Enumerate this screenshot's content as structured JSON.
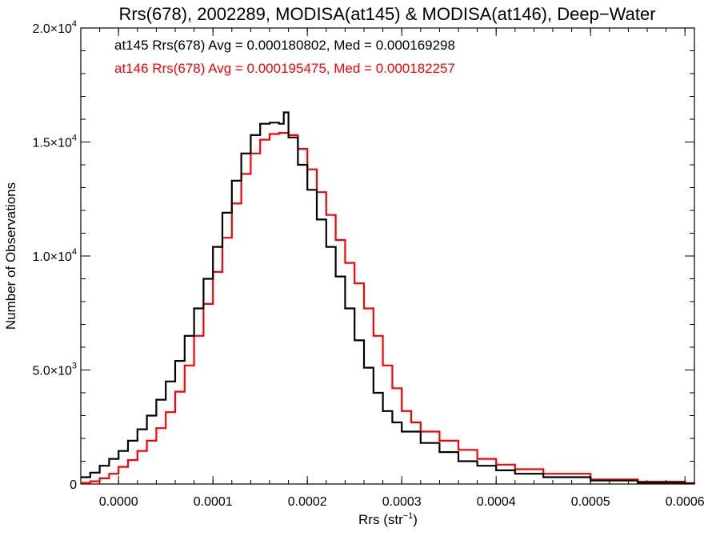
{
  "chart_data": {
    "type": "histogram",
    "title": "Rrs(678), 2002289, MODISA(at145) & MODISA(at146), Deep−Water",
    "xlabel_base": "Rrs (str",
    "xlabel_sup": "−1",
    "xlabel_end": ")",
    "ylabel": "Number of Observations",
    "xlim": [
      -4e-05,
      0.00061
    ],
    "ylim": [
      0,
      20000
    ],
    "grid": false,
    "x_ticks": [
      {
        "value": 0.0,
        "label": "0.0000"
      },
      {
        "value": 0.0001,
        "label": "0.0001"
      },
      {
        "value": 0.0002,
        "label": "0.0002"
      },
      {
        "value": 0.0003,
        "label": "0.0003"
      },
      {
        "value": 0.0004,
        "label": "0.0004"
      },
      {
        "value": 0.0005,
        "label": "0.0005"
      },
      {
        "value": 0.0006,
        "label": "0.0006"
      }
    ],
    "y_ticks": [
      {
        "value": 0,
        "base": "0",
        "exp": ""
      },
      {
        "value": 5000,
        "base": "5.0×10",
        "exp": "3"
      },
      {
        "value": 10000,
        "base": "1.0×10",
        "exp": "4"
      },
      {
        "value": 15000,
        "base": "1.5×10",
        "exp": "4"
      },
      {
        "value": 20000,
        "base": "2.0×10",
        "exp": "4"
      }
    ],
    "annotations": [
      {
        "text": "at145 Rrs(678) Avg = 0.000180802, Med = 0.000169298",
        "color": "#000000"
      },
      {
        "text": "at146 Rrs(678) Avg = 0.000195475, Med = 0.000182257",
        "color": "#ff0000"
      }
    ],
    "series": [
      {
        "color": "#000000",
        "x": [
          -4e-05,
          -3e-05,
          -2e-05,
          -1e-05,
          0.0,
          1e-05,
          2e-05,
          3e-05,
          4e-05,
          5e-05,
          6e-05,
          7e-05,
          8e-05,
          9e-05,
          0.0001,
          0.00011,
          0.00012,
          0.00013,
          0.00014,
          0.00015,
          0.00016,
          0.00017,
          0.000175,
          0.00018,
          0.00019,
          0.0002,
          0.00021,
          0.00022,
          0.00023,
          0.00024,
          0.00025,
          0.00026,
          0.00027,
          0.00028,
          0.00029,
          0.0003,
          0.00032,
          0.00034,
          0.00036,
          0.00038,
          0.0004,
          0.00042,
          0.00045,
          0.0005,
          0.00055,
          0.0006,
          0.00061
        ],
        "y": [
          300,
          500,
          800,
          1100,
          1450,
          1900,
          2400,
          3000,
          3700,
          4500,
          5400,
          6500,
          7700,
          9000,
          10400,
          11900,
          13300,
          14500,
          15300,
          15800,
          15850,
          15800,
          16300,
          15200,
          14000,
          12900,
          11600,
          10400,
          9100,
          7700,
          6300,
          5100,
          4000,
          3200,
          2700,
          2300,
          1800,
          1400,
          1000,
          800,
          600,
          450,
          300,
          150,
          60,
          20,
          10
        ]
      },
      {
        "color": "#ff0000",
        "x": [
          -4e-05,
          -3e-05,
          -2e-05,
          -1e-05,
          0.0,
          1e-05,
          2e-05,
          3e-05,
          4e-05,
          5e-05,
          6e-05,
          7e-05,
          8e-05,
          9e-05,
          0.0001,
          0.00011,
          0.00012,
          0.00013,
          0.00014,
          0.00015,
          0.00016,
          0.00017,
          0.00018,
          0.00019,
          0.0002,
          0.00021,
          0.00022,
          0.00023,
          0.00024,
          0.00025,
          0.00026,
          0.00027,
          0.00028,
          0.00029,
          0.0003,
          0.00031,
          0.00032,
          0.00034,
          0.00036,
          0.00038,
          0.0004,
          0.00042,
          0.00045,
          0.0005,
          0.00055,
          0.0006,
          0.00061
        ],
        "y": [
          50,
          120,
          250,
          450,
          750,
          1050,
          1450,
          1900,
          2450,
          3150,
          4050,
          5200,
          6500,
          7900,
          9300,
          10800,
          12300,
          13600,
          14500,
          15100,
          15350,
          15400,
          15300,
          14700,
          13800,
          12800,
          11800,
          10700,
          9700,
          8800,
          7700,
          6500,
          5200,
          4200,
          3200,
          2700,
          2300,
          1900,
          1500,
          1100,
          850,
          650,
          450,
          200,
          100,
          40,
          20
        ]
      }
    ]
  }
}
